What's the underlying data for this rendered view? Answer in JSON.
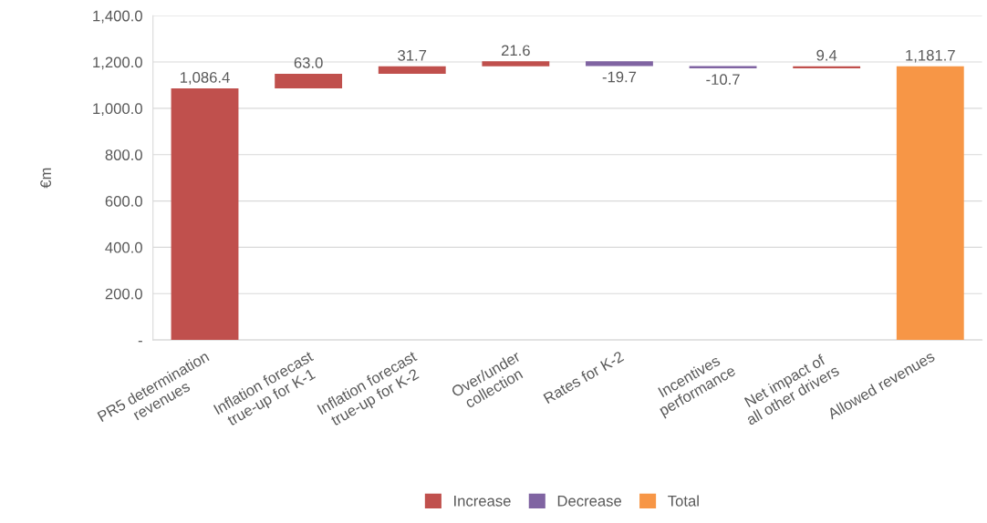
{
  "chart_data": {
    "type": "bar",
    "ylabel": "€m",
    "categories": [
      "PR5 determination\nrevenues",
      "Inflation forecast\ntrue-up for K-1",
      "Inflation forecast\ntrue-up for K-2",
      "Over/under\ncollection",
      "Rates for K-2",
      "Incentives\nperformance",
      "Net impact of\nall other drivers",
      "Allowed revenues"
    ],
    "series": [
      {
        "name": "Increase",
        "color": "#c0504d",
        "base": [
          0,
          1086.4,
          1149.4,
          1181.1,
          null,
          null,
          1172.3,
          null
        ],
        "values": [
          1086.4,
          63.0,
          31.7,
          21.6,
          null,
          null,
          9.4,
          null
        ],
        "value_labels": [
          "1,086.4",
          "63.0",
          "31.7",
          "21.6",
          null,
          null,
          "9.4",
          null
        ]
      },
      {
        "name": "Decrease",
        "color": "#8064a2",
        "base": [
          null,
          null,
          null,
          null,
          1202.7,
          1183.0,
          null,
          null
        ],
        "values": [
          null,
          null,
          null,
          null,
          -19.7,
          -10.7,
          null,
          null
        ],
        "value_labels": [
          null,
          null,
          null,
          null,
          "-19.7",
          "-10.7",
          null,
          null
        ]
      },
      {
        "name": "Total",
        "color": "#f79646",
        "base": [
          null,
          null,
          null,
          null,
          null,
          null,
          null,
          0
        ],
        "values": [
          null,
          null,
          null,
          null,
          null,
          null,
          null,
          1181.7
        ],
        "value_labels": [
          null,
          null,
          null,
          null,
          null,
          null,
          null,
          "1,181.7"
        ]
      }
    ],
    "ylim": [
      0,
      1400
    ],
    "yticks": [
      {
        "value": 0,
        "label": "-"
      },
      {
        "value": 200,
        "label": "200.0"
      },
      {
        "value": 400,
        "label": "400.0"
      },
      {
        "value": 600,
        "label": "600.0"
      },
      {
        "value": 800,
        "label": "800.0"
      },
      {
        "value": 1000,
        "label": "1,000.0"
      },
      {
        "value": 1200,
        "label": "1,200.0"
      },
      {
        "value": 1400,
        "label": "1,400.0"
      }
    ],
    "grid": "y",
    "legend": "bottom"
  }
}
